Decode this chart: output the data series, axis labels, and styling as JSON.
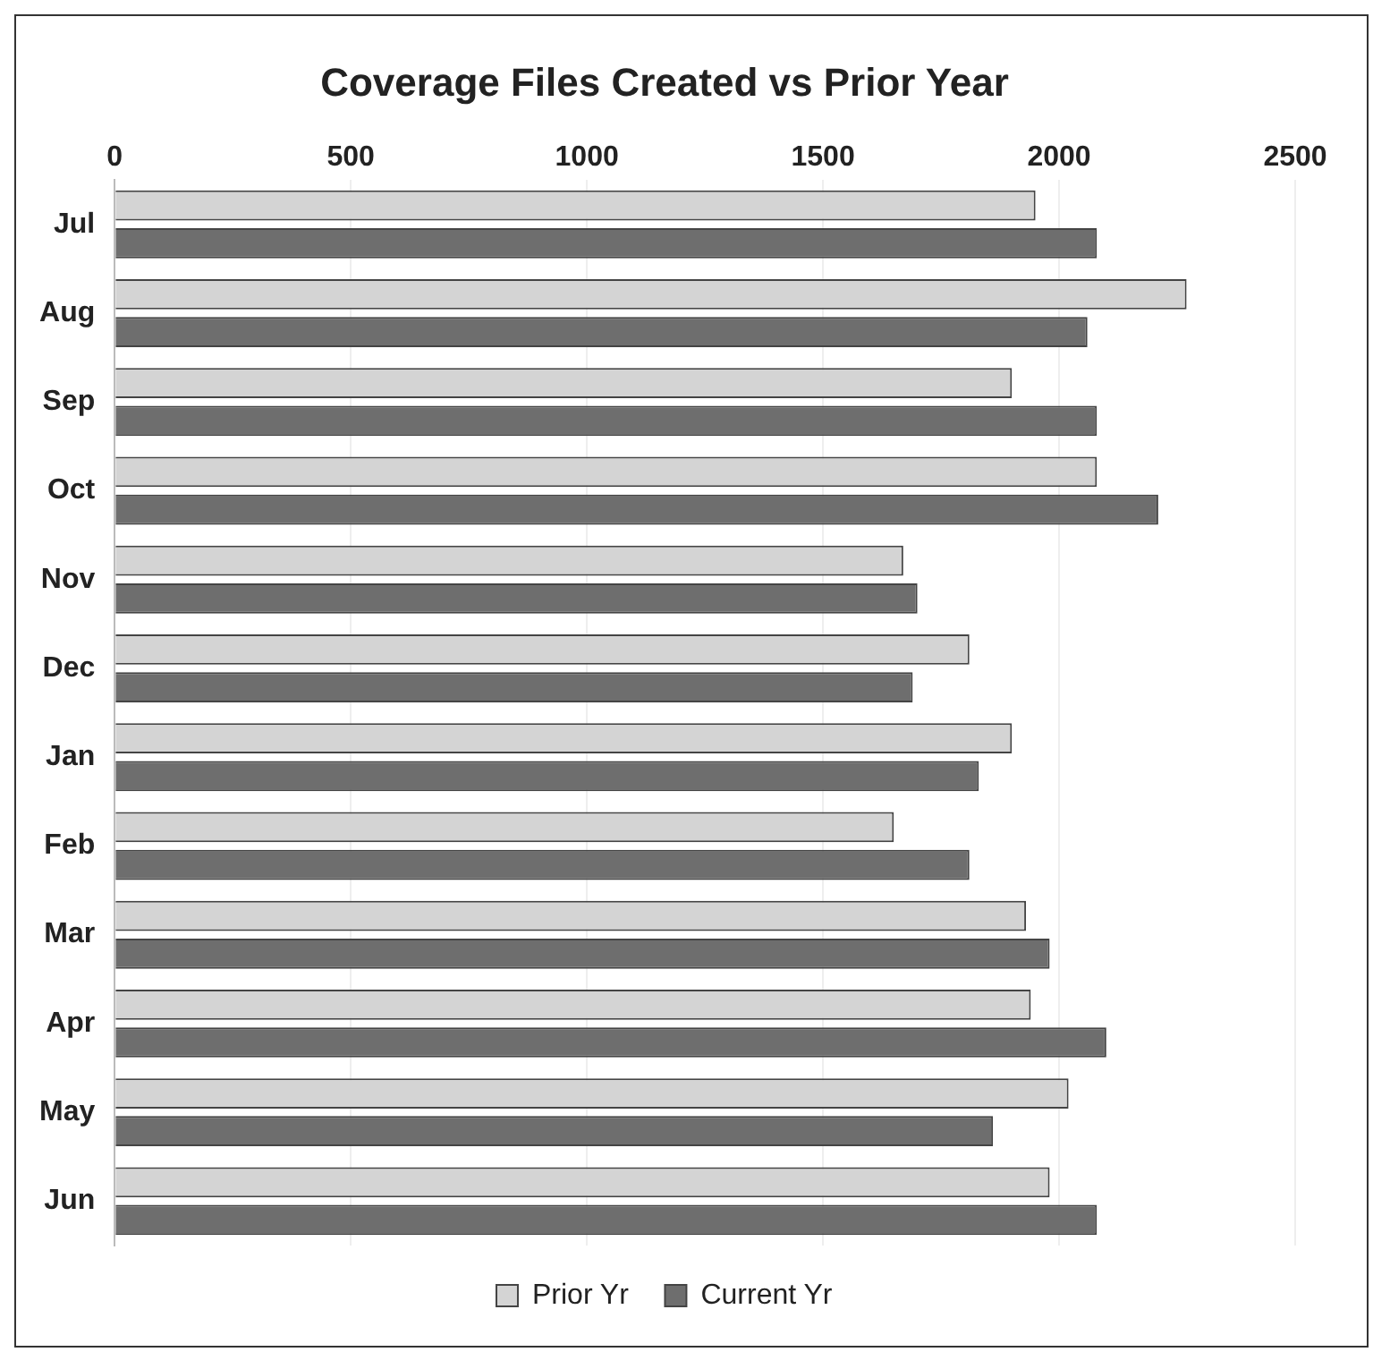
{
  "chart_data": {
    "type": "bar",
    "orientation": "horizontal",
    "title": "Coverage Files Created vs Prior Year",
    "categories": [
      "Jul",
      "Aug",
      "Sep",
      "Oct",
      "Nov",
      "Dec",
      "Jan",
      "Feb",
      "Mar",
      "Apr",
      "May",
      "Jun"
    ],
    "series": [
      {
        "name": "Prior Yr",
        "color": "#d4d4d4",
        "values": [
          1950,
          2270,
          1900,
          2080,
          1670,
          1810,
          1900,
          1650,
          1930,
          1940,
          2020,
          1980
        ]
      },
      {
        "name": "Current Yr",
        "color": "#6e6e6e",
        "values": [
          2080,
          2060,
          2080,
          2210,
          1700,
          1690,
          1830,
          1810,
          1980,
          2100,
          1860,
          2080
        ]
      }
    ],
    "xlim": [
      0,
      2500
    ],
    "xticks": [
      0,
      500,
      1000,
      1500,
      2000,
      2500
    ],
    "grid": "x",
    "legend": "bottom"
  }
}
